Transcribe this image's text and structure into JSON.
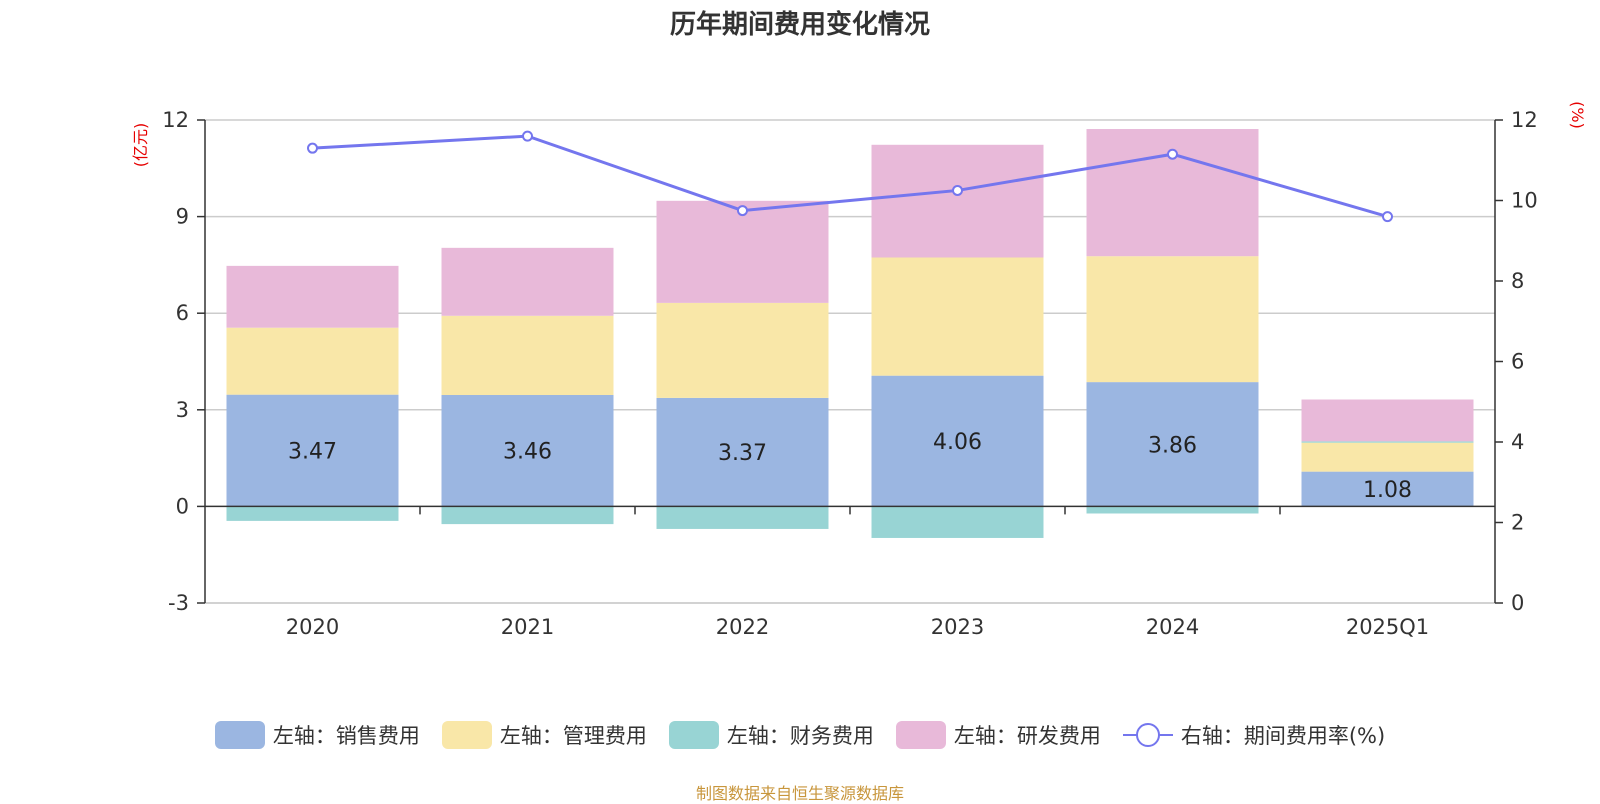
{
  "chart_data": {
    "type": "bar",
    "title": "历年期间费用变化情况",
    "categories": [
      "2020",
      "2021",
      "2022",
      "2023",
      "2024",
      "2025Q1"
    ],
    "left_axis": {
      "unit": "(亿元)",
      "ticks": [
        -3,
        0,
        3,
        6,
        9,
        12
      ],
      "ylim": [
        -3,
        12
      ]
    },
    "right_axis": {
      "unit": "(%)",
      "ticks": [
        0,
        2,
        4,
        6,
        8,
        10,
        12
      ],
      "ylim": [
        0,
        12
      ]
    },
    "series": [
      {
        "name": "左轴：销售费用",
        "axis": "left",
        "color": "#9bb6e1",
        "values": [
          3.47,
          3.46,
          3.37,
          4.06,
          3.86,
          1.08
        ],
        "labels": [
          "3.47",
          "3.46",
          "3.37",
          "4.06",
          "3.86",
          "1.08"
        ]
      },
      {
        "name": "左轴：管理费用",
        "axis": "left",
        "color": "#f9e7a8",
        "values": [
          2.08,
          2.46,
          2.95,
          3.67,
          3.91,
          0.9
        ]
      },
      {
        "name": "左轴：财务费用",
        "axis": "left",
        "color": "#98d4d4",
        "values": [
          -0.45,
          -0.55,
          -0.7,
          -0.98,
          -0.22,
          0.04
        ]
      },
      {
        "name": "左轴：研发费用",
        "axis": "left",
        "color": "#e8b9d9",
        "values": [
          1.92,
          2.11,
          3.17,
          3.5,
          3.95,
          1.3
        ]
      },
      {
        "name": "右轴：期间费用率(%)",
        "axis": "right",
        "type": "line",
        "color": "#7476ee",
        "values": [
          11.3,
          11.6,
          9.75,
          10.25,
          11.15,
          9.6
        ]
      }
    ],
    "grid": true,
    "legend_position": "bottom"
  },
  "source": "制图数据来自恒生聚源数据库"
}
